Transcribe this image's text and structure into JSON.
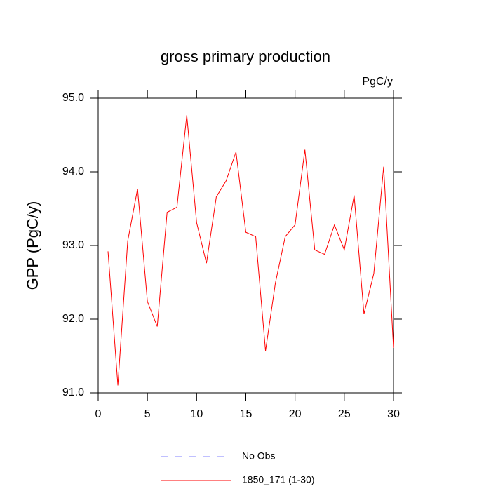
{
  "chart_data": {
    "type": "line",
    "title": "gross primary production",
    "units": "PgC/y",
    "y_label": "GPP  (PgC/y)",
    "x": [
      1,
      2,
      3,
      4,
      5,
      6,
      7,
      8,
      9,
      10,
      11,
      12,
      13,
      14,
      15,
      16,
      17,
      18,
      19,
      20,
      21,
      22,
      23,
      24,
      25,
      26,
      27,
      28,
      29,
      30
    ],
    "series": [
      {
        "name": "No Obs",
        "color": "#8080ff",
        "dashed": true,
        "values": [
          null,
          null,
          null,
          null,
          null,
          null,
          null,
          null,
          null,
          null,
          null,
          null,
          null,
          null,
          null,
          null,
          null,
          null,
          null,
          null,
          null,
          null,
          null,
          null,
          null,
          null,
          null,
          null,
          null,
          null
        ]
      },
      {
        "name": "1850_171 (1-30)",
        "color": "#ff0000",
        "dashed": false,
        "values": [
          92.92,
          91.1,
          93.06,
          93.77,
          92.24,
          91.9,
          93.45,
          93.52,
          94.77,
          93.31,
          92.76,
          93.66,
          93.88,
          94.27,
          93.18,
          93.12,
          91.57,
          92.49,
          93.12,
          93.28,
          94.3,
          92.94,
          92.88,
          93.28,
          92.94,
          93.68,
          92.07,
          92.62,
          94.07,
          91.61
        ]
      }
    ],
    "xlim": [
      0,
      30
    ],
    "xticks": [
      0,
      5,
      10,
      15,
      20,
      25,
      30
    ],
    "ylim": [
      91,
      95
    ],
    "yticks": [
      {
        "value": 91,
        "label": "91.0"
      },
      {
        "value": 92,
        "label": "92.0"
      },
      {
        "value": 93,
        "label": "93.0"
      },
      {
        "value": 94,
        "label": "94.0"
      },
      {
        "value": 95,
        "label": "95.0"
      }
    ],
    "grid": false
  }
}
